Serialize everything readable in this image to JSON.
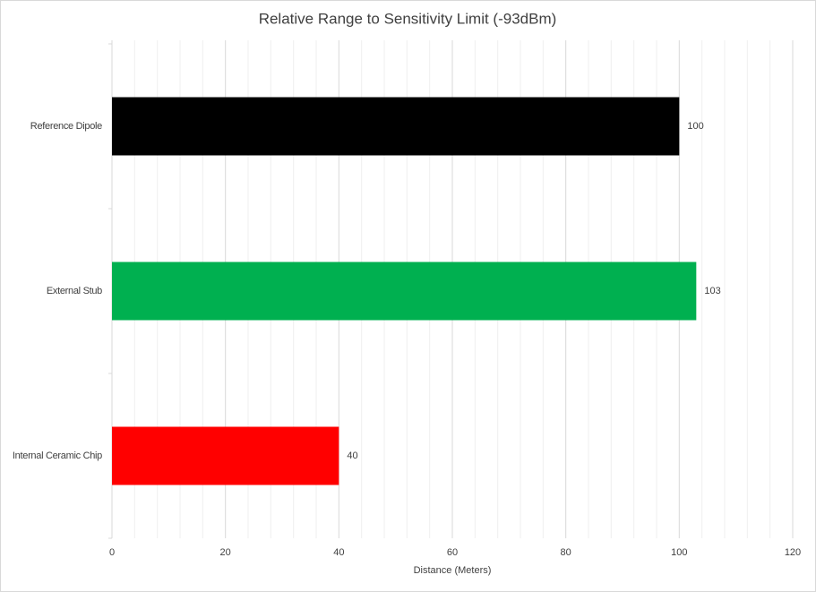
{
  "chart_data": {
    "type": "barh",
    "title": "Relative Range to Sensitivity Limit (-93dBm)",
    "x_label": "Distance (Meters)",
    "categories": [
      "Reference Dipole",
      "External Stub",
      "Internal Ceramic Chip"
    ],
    "values": [
      100,
      103,
      40
    ],
    "colors": [
      "#000000",
      "#00b050",
      "#ff0000"
    ],
    "xlim": [
      0,
      120
    ],
    "xticks": [
      0,
      20,
      40,
      60,
      80,
      100,
      120
    ],
    "minor_xticks": [
      4,
      8,
      12,
      16,
      24,
      28,
      32,
      36,
      44,
      48,
      52,
      56,
      64,
      68,
      72,
      76,
      84,
      88,
      92,
      96,
      104,
      108,
      112,
      116
    ],
    "grid": true,
    "data_labels": true
  }
}
